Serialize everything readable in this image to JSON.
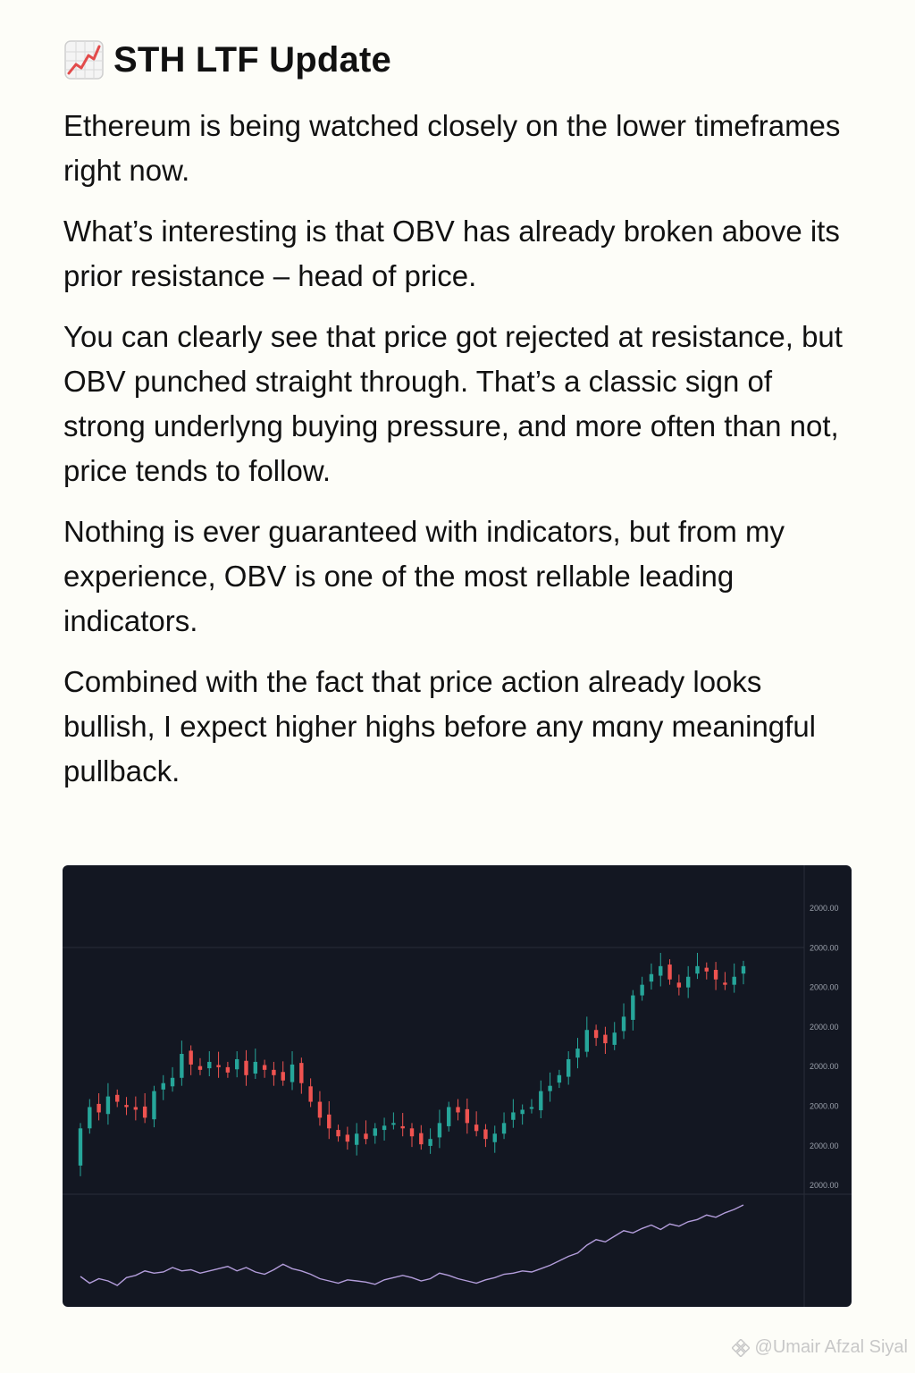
{
  "post": {
    "title_icon": "chart-increasing-icon",
    "title": "STH LTF Update",
    "paragraphs": [
      "Ethereum is being watched closely on the lower timeframes right now.",
      "What’s interesting is that OBV has already broken above its prior resistance – head of price.",
      "You can clearly see that price got rejected at resistance, but OBV punched straight through. That’s a classic sign of strong underlyng buying pressure, and more often than not, price tends to follow.",
      "Nothing is ever guaranteed with indicators, but from my experience, OBV is one of the most rellable leading indicators.",
      "Combined with the fact that price action already looks bullish, I expect higher highs before any mɑny meaningful pullback."
    ]
  },
  "chart_data": {
    "type": "candlestick",
    "title": "",
    "y_tick_labels": [
      "2000.00",
      "2000.00",
      "2000.00",
      "2000.00",
      "2000.00",
      "2000.00",
      "2000.00",
      "2000.00"
    ],
    "colors": {
      "background": "#131722",
      "up": "#26a69a",
      "down": "#ef5350",
      "obv": "#b39ddb"
    },
    "close_series": [
      38,
      46,
      44,
      50,
      48,
      46,
      45,
      42,
      52,
      55,
      57,
      66,
      62,
      60,
      63,
      61,
      59,
      64,
      58,
      63,
      60,
      58,
      56,
      62,
      55,
      48,
      42,
      38,
      35,
      33,
      36,
      34,
      38,
      39,
      40,
      38,
      35,
      32,
      34,
      40,
      46,
      44,
      40,
      37,
      34,
      36,
      40,
      44,
      45,
      46,
      52,
      54,
      58,
      64,
      68,
      75,
      72,
      70,
      74,
      80,
      88,
      92,
      96,
      99,
      94,
      91,
      95,
      99,
      97,
      94,
      92,
      95,
      99
    ],
    "obv_series": [
      28,
      22,
      26,
      24,
      20,
      27,
      29,
      33,
      31,
      32,
      36,
      33,
      34,
      31,
      33,
      35,
      37,
      33,
      36,
      32,
      30,
      34,
      39,
      35,
      33,
      30,
      26,
      24,
      22,
      25,
      24,
      23,
      21,
      25,
      27,
      29,
      27,
      24,
      26,
      31,
      29,
      26,
      24,
      22,
      25,
      27,
      30,
      31,
      33,
      32,
      35,
      38,
      42,
      46,
      49,
      56,
      61,
      59,
      64,
      69,
      67,
      71,
      74,
      70,
      75,
      73,
      77,
      79,
      83,
      81,
      85,
      88,
      92
    ]
  },
  "watermark": {
    "icon": "binance-square-icon",
    "text": "@Umair Afzal Siyal"
  }
}
